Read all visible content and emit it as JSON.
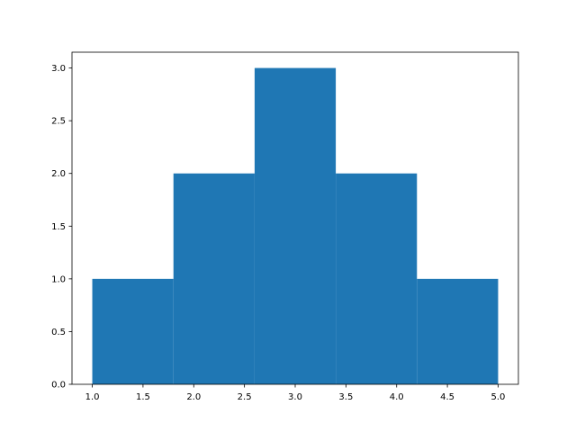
{
  "chart_data": {
    "type": "histogram",
    "title": "",
    "xlabel": "",
    "ylabel": "",
    "bin_edges": [
      1.0,
      1.8,
      2.6,
      3.4,
      4.2,
      5.0
    ],
    "counts": [
      1,
      2,
      3,
      2,
      1
    ],
    "xlim": [
      0.8,
      5.2
    ],
    "ylim": [
      0,
      3.15
    ],
    "xticks": [
      1.0,
      1.5,
      2.0,
      2.5,
      3.0,
      3.5,
      4.0,
      4.5,
      5.0
    ],
    "xtick_labels": [
      "1.0",
      "1.5",
      "2.0",
      "2.5",
      "3.0",
      "3.5",
      "4.0",
      "4.5",
      "5.0"
    ],
    "yticks": [
      0,
      0.5,
      1.0,
      1.5,
      2.0,
      2.5,
      3.0
    ],
    "ytick_labels": [
      "0.0",
      "0.5",
      "1.0",
      "1.5",
      "2.0",
      "2.5",
      "3.0"
    ],
    "grid": false,
    "bar_color": "#1f77b4"
  }
}
